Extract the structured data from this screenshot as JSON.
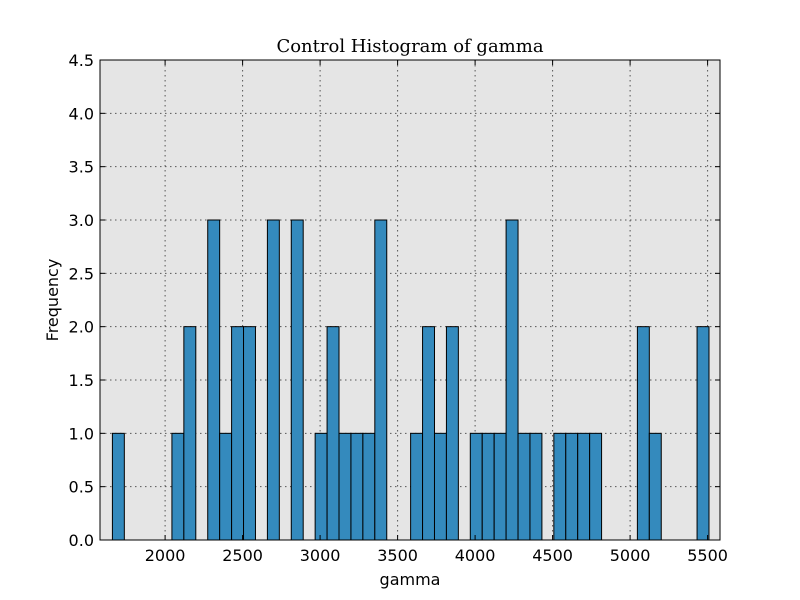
{
  "chart_data": {
    "type": "bar",
    "title": "Control Histogram of gamma",
    "xlabel": "gamma",
    "ylabel": "Frequency",
    "xlim": [
      1580,
      5580
    ],
    "ylim": [
      0,
      4.5
    ],
    "xticks": [
      2000,
      2500,
      3000,
      3500,
      4000,
      4500,
      5000,
      5500
    ],
    "yticks": [
      "0.0",
      "0.5",
      "1.0",
      "1.5",
      "2.0",
      "2.5",
      "3.0",
      "3.5",
      "4.0",
      "4.5"
    ],
    "grid": true,
    "bin_width": 77,
    "bins": [
      {
        "start": 1660,
        "count": 1
      },
      {
        "start": 2044,
        "count": 1
      },
      {
        "start": 2121,
        "count": 2
      },
      {
        "start": 2275,
        "count": 3
      },
      {
        "start": 2352,
        "count": 1
      },
      {
        "start": 2429,
        "count": 2
      },
      {
        "start": 2506,
        "count": 2
      },
      {
        "start": 2660,
        "count": 3
      },
      {
        "start": 2814,
        "count": 3
      },
      {
        "start": 2968,
        "count": 1
      },
      {
        "start": 3045,
        "count": 2
      },
      {
        "start": 3122,
        "count": 1
      },
      {
        "start": 3199,
        "count": 1
      },
      {
        "start": 3276,
        "count": 1
      },
      {
        "start": 3353,
        "count": 3
      },
      {
        "start": 3584,
        "count": 1
      },
      {
        "start": 3661,
        "count": 2
      },
      {
        "start": 3738,
        "count": 1
      },
      {
        "start": 3815,
        "count": 2
      },
      {
        "start": 3969,
        "count": 1
      },
      {
        "start": 4046,
        "count": 1
      },
      {
        "start": 4123,
        "count": 1
      },
      {
        "start": 4200,
        "count": 3
      },
      {
        "start": 4277,
        "count": 1
      },
      {
        "start": 4354,
        "count": 1
      },
      {
        "start": 4508,
        "count": 1
      },
      {
        "start": 4585,
        "count": 1
      },
      {
        "start": 4662,
        "count": 1
      },
      {
        "start": 4739,
        "count": 1
      },
      {
        "start": 5047,
        "count": 2
      },
      {
        "start": 5124,
        "count": 1
      },
      {
        "start": 5432,
        "count": 2
      }
    ]
  },
  "colors": {
    "bar_fill": "#348abd",
    "plot_background": "#e5e5e5"
  }
}
